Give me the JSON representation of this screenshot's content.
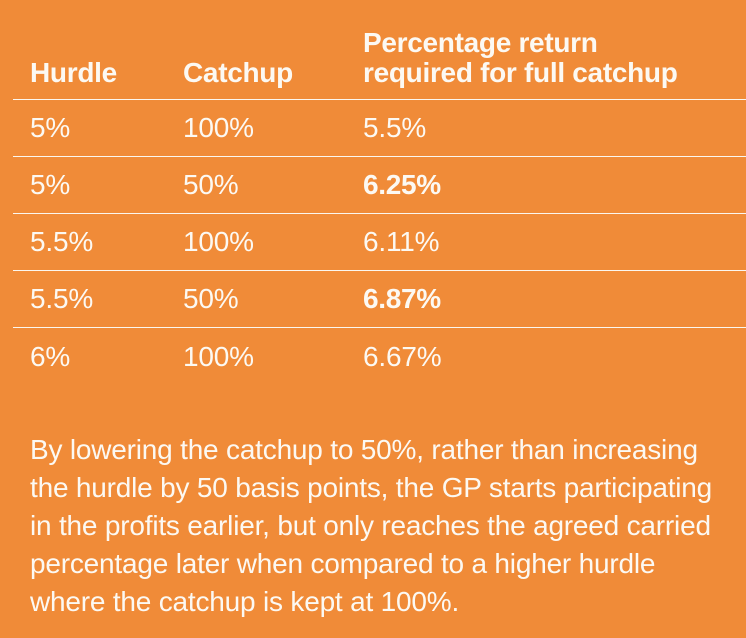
{
  "theme": {
    "background_color": "#F08B38",
    "text_color": "#FCF9F3",
    "divider_color": "#FBF6EE"
  },
  "table": {
    "columns": [
      {
        "label": "Hurdle"
      },
      {
        "label": "Catchup"
      },
      {
        "label": "Percentage return required for full catchup"
      }
    ],
    "rows": [
      {
        "hurdle": "5%",
        "catchup": "100%",
        "required": "5.5%",
        "bold": false
      },
      {
        "hurdle": "5%",
        "catchup": "50%",
        "required": "6.25%",
        "bold": true
      },
      {
        "hurdle": "5.5%",
        "catchup": "100%",
        "required": "6.11%",
        "bold": false
      },
      {
        "hurdle": "5.5%",
        "catchup": "50%",
        "required": "6.87%",
        "bold": true
      },
      {
        "hurdle": "6%",
        "catchup": "100%",
        "required": "6.67%",
        "bold": false
      }
    ]
  },
  "note": {
    "text": "By lowering the catchup to 50%, rather than increasing the hurdle by 50 basis points, the GP starts participating in the profits earlier, but only reaches the agreed carried percentage later when compared to a higher hurdle where the catchup is kept at 100%."
  }
}
